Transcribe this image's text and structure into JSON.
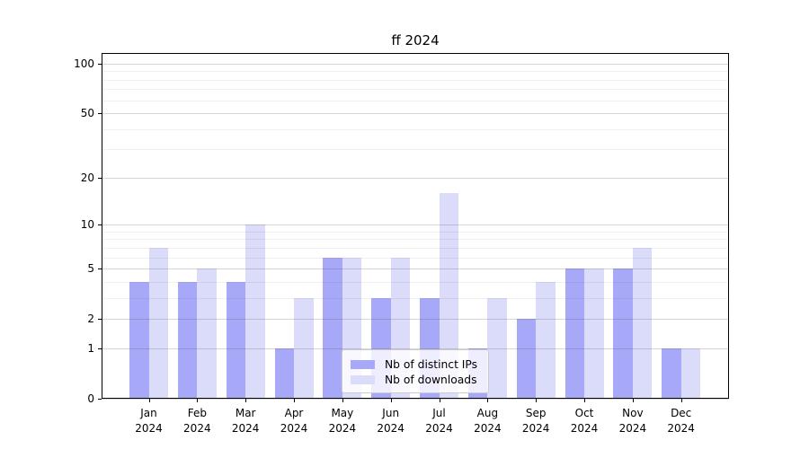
{
  "chart_data": {
    "type": "bar",
    "title": "ff 2024",
    "categories": [
      "Jan 2024",
      "Feb 2024",
      "Mar 2024",
      "Apr 2024",
      "May 2024",
      "Jun 2024",
      "Jul 2024",
      "Aug 2024",
      "Sep 2024",
      "Oct 2024",
      "Nov 2024",
      "Dec 2024"
    ],
    "series": [
      {
        "name": "Nb of distinct IPs",
        "color": "#a8a8f8",
        "values": [
          4,
          4,
          4,
          1,
          6,
          3,
          3,
          1,
          2,
          5,
          5,
          1
        ]
      },
      {
        "name": "Nb of downloads",
        "color": "#dbdbfa",
        "values": [
          7,
          5,
          10,
          3,
          6,
          6,
          16,
          3,
          4,
          5,
          7,
          1
        ]
      }
    ],
    "xlabel": "",
    "ylabel": "",
    "yscale": "log1p",
    "ylim": [
      0,
      115.8
    ],
    "yticks_major": [
      0,
      1,
      2,
      5,
      10,
      20,
      50,
      100
    ],
    "yticks_minor": [
      3,
      4,
      6,
      7,
      8,
      9,
      30,
      40,
      60,
      70,
      80,
      90
    ],
    "grid": true,
    "legend_position": "lower center"
  },
  "colors": {
    "background": "#ffffff",
    "axis_frame": "#000000",
    "grid_major": "#d4d4d4",
    "grid_minor": "#efefef",
    "text": "#000000",
    "legend_border": "#cccccc"
  }
}
